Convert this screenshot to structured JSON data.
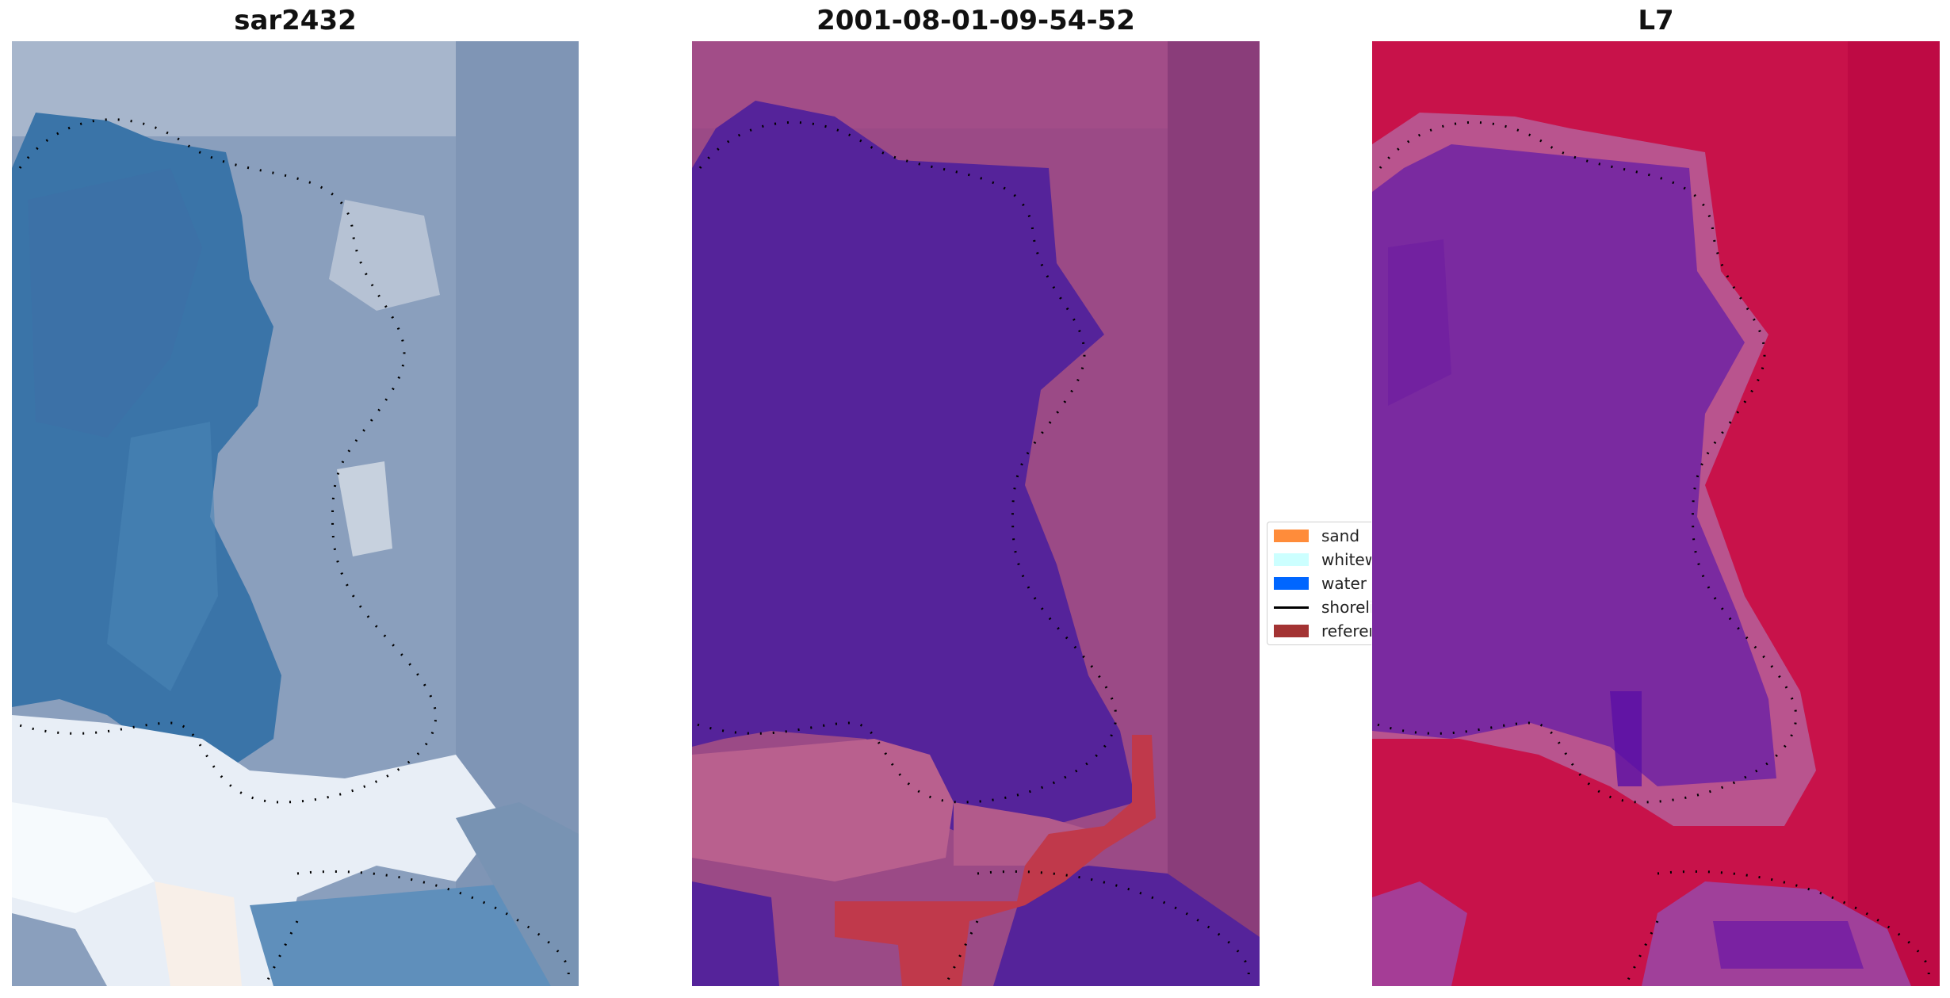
{
  "panels": [
    {
      "title": "sar2432"
    },
    {
      "title": "2001-08-01-09-54-52"
    },
    {
      "title": "L7"
    }
  ],
  "legend": {
    "items": [
      {
        "label": "sand",
        "color": "#ff8c3a",
        "kind": "patch"
      },
      {
        "label": "whitewater",
        "color": "#ccffff",
        "kind": "patch"
      },
      {
        "label": "water",
        "color": "#0066ff",
        "kind": "patch"
      },
      {
        "label": "shoreline",
        "color": "#000000",
        "kind": "line"
      },
      {
        "label": "reference",
        "color": "#a33333",
        "kind": "patch"
      }
    ]
  },
  "colors": {
    "water_class": "#55239a",
    "land_class": "#9b4a86",
    "land_light": "#b9608e",
    "reference": "#c0394b",
    "ndwi_water": "#7a2aa0",
    "ndwi_land": "#c8124a",
    "rgb_water": "#3a74a8",
    "rgb_land": "#8a9fbd",
    "rgb_cloud": "#e8eef6"
  }
}
